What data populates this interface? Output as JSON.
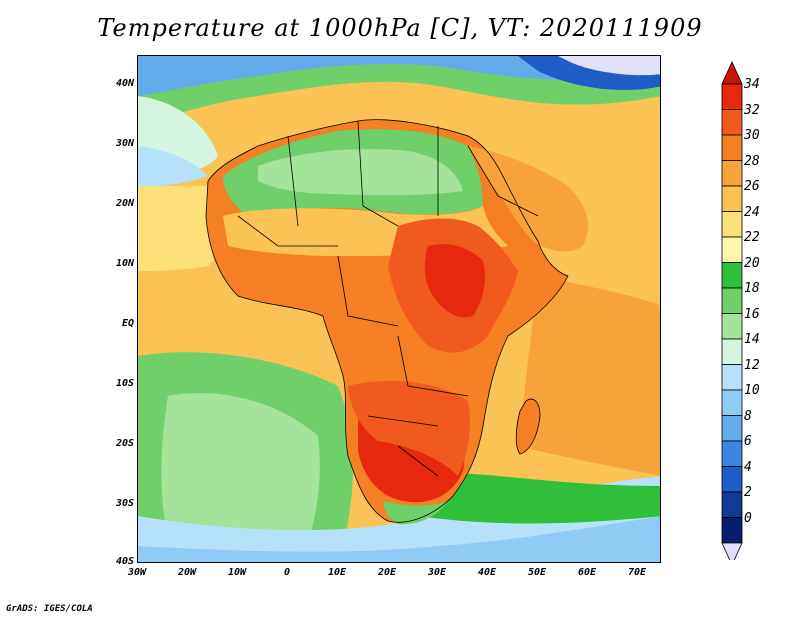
{
  "title": "Temperature at 1000hPa [C], VT: 2020111909",
  "credit": "GrADS: IGES/COLA",
  "map": {
    "region": "Africa",
    "lat_labels": [
      "40N",
      "30N",
      "20N",
      "10N",
      "EQ",
      "10S",
      "20S",
      "30S",
      "40S"
    ],
    "lon_labels": [
      "30W",
      "20W",
      "10W",
      "0",
      "10E",
      "20E",
      "30E",
      "40E",
      "50E",
      "60E",
      "70E"
    ]
  },
  "colorbar": {
    "labels": [
      "34",
      "32",
      "30",
      "28",
      "26",
      "24",
      "22",
      "20",
      "18",
      "16",
      "14",
      "12",
      "10",
      "8",
      "6",
      "4",
      "2",
      "0"
    ],
    "colors": [
      "#e8280e",
      "#f05a1e",
      "#f57f23",
      "#f8a33a",
      "#fbc356",
      "#fde07a",
      "#fdf8ae",
      "#2fbf3a",
      "#6fd06a",
      "#a4e39a",
      "#d6f5e0",
      "#b6e1fb",
      "#8ecbf5",
      "#63acec",
      "#3b86e0",
      "#1d5ec6",
      "#0f3b97",
      "#071e70"
    ],
    "top_arrow_color": "#c8140a",
    "bottom_arrow_color": "#e0e0f8"
  },
  "colors": {
    "ocean_warm": "#fbc356",
    "ocean_mild": "#fde07a",
    "ocean_cool": "#6fd06a",
    "ocean_cold": "#a4e39a",
    "land_hot": "#e8280e",
    "land_warm": "#f57f23",
    "sahara": "#6fd06a"
  }
}
